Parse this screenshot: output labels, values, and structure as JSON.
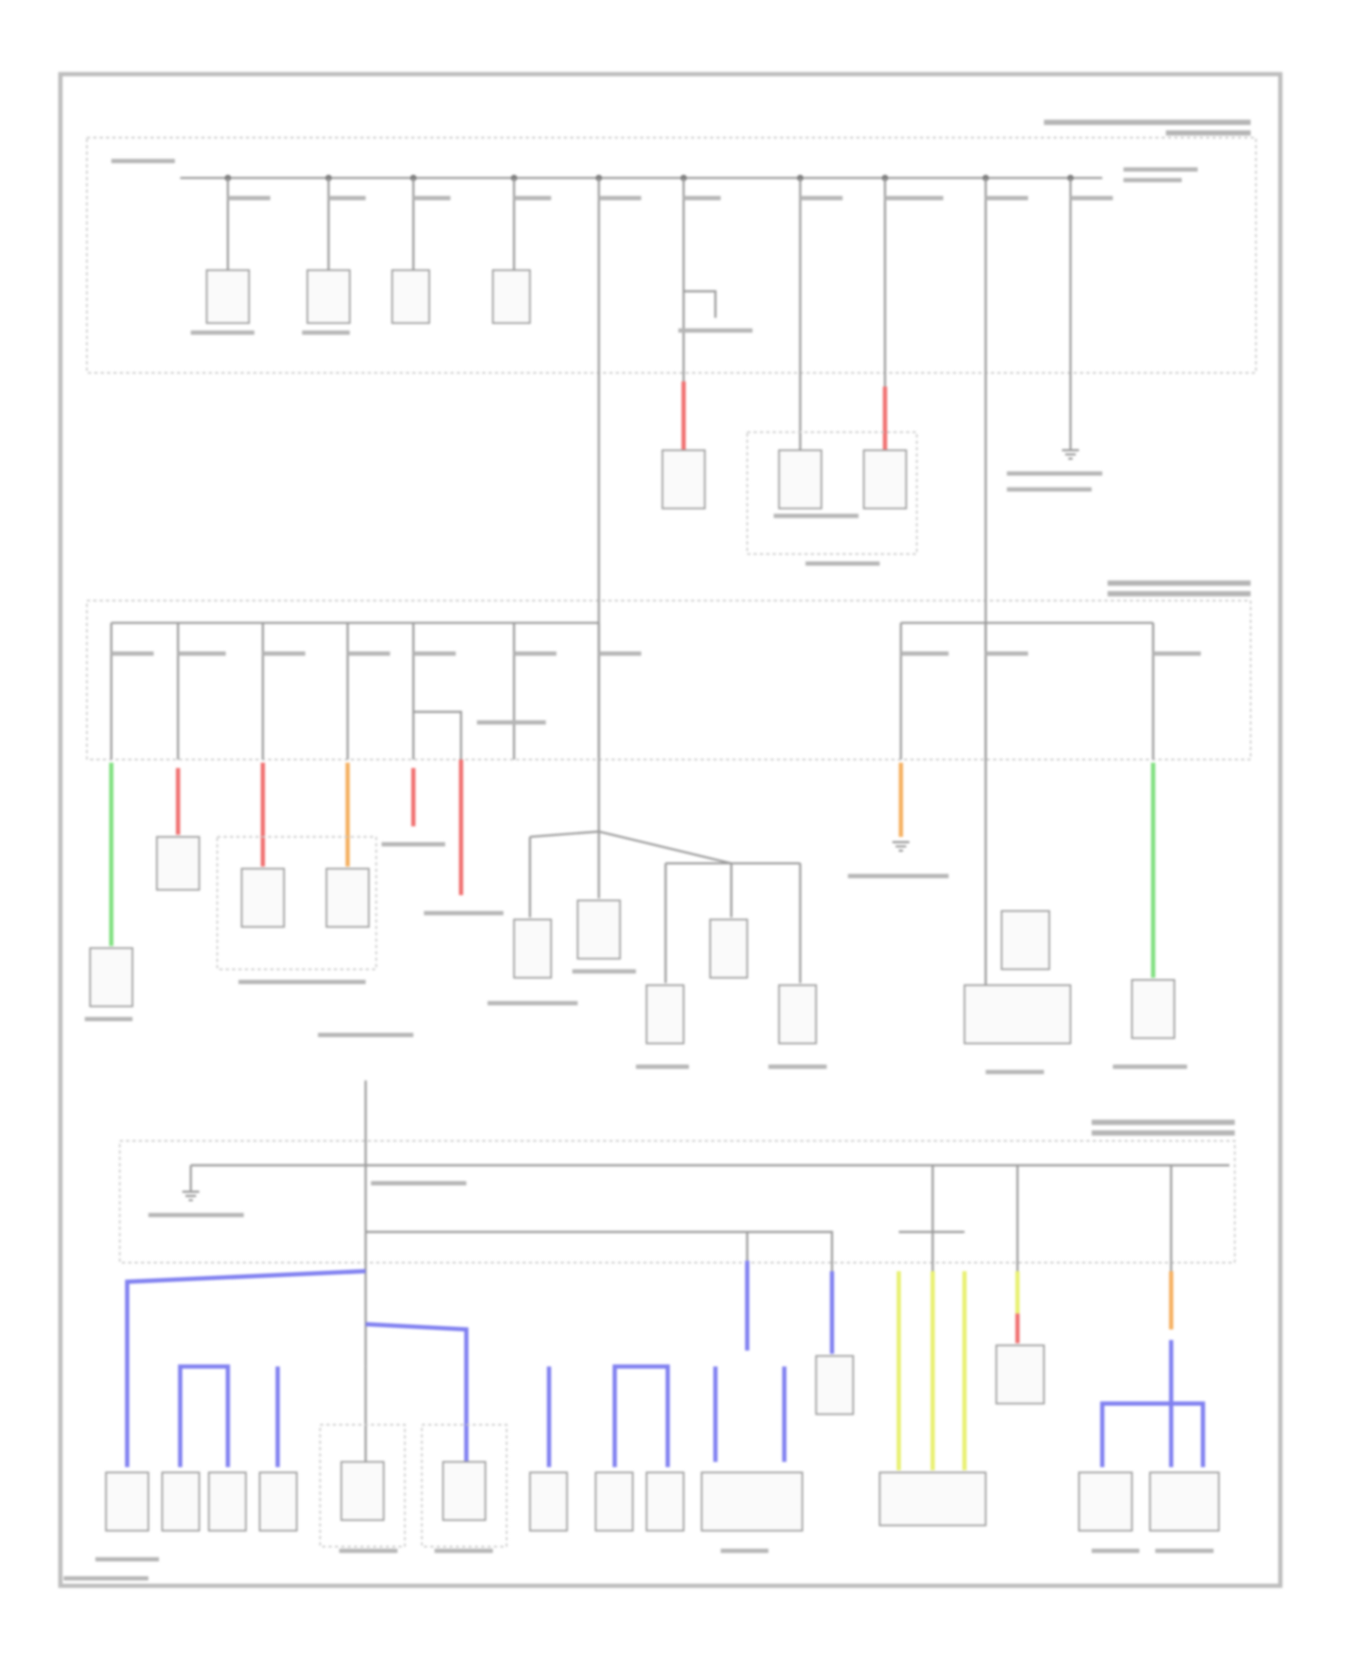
{
  "wire_colors": {
    "generic": "#9a9a9a",
    "red": "#f07070",
    "green": "#80e080",
    "orange": "#f5b060",
    "blue": "#8080f0",
    "yellow": "#e8f070"
  },
  "frame": {
    "border_opacity": 0.25
  }
}
